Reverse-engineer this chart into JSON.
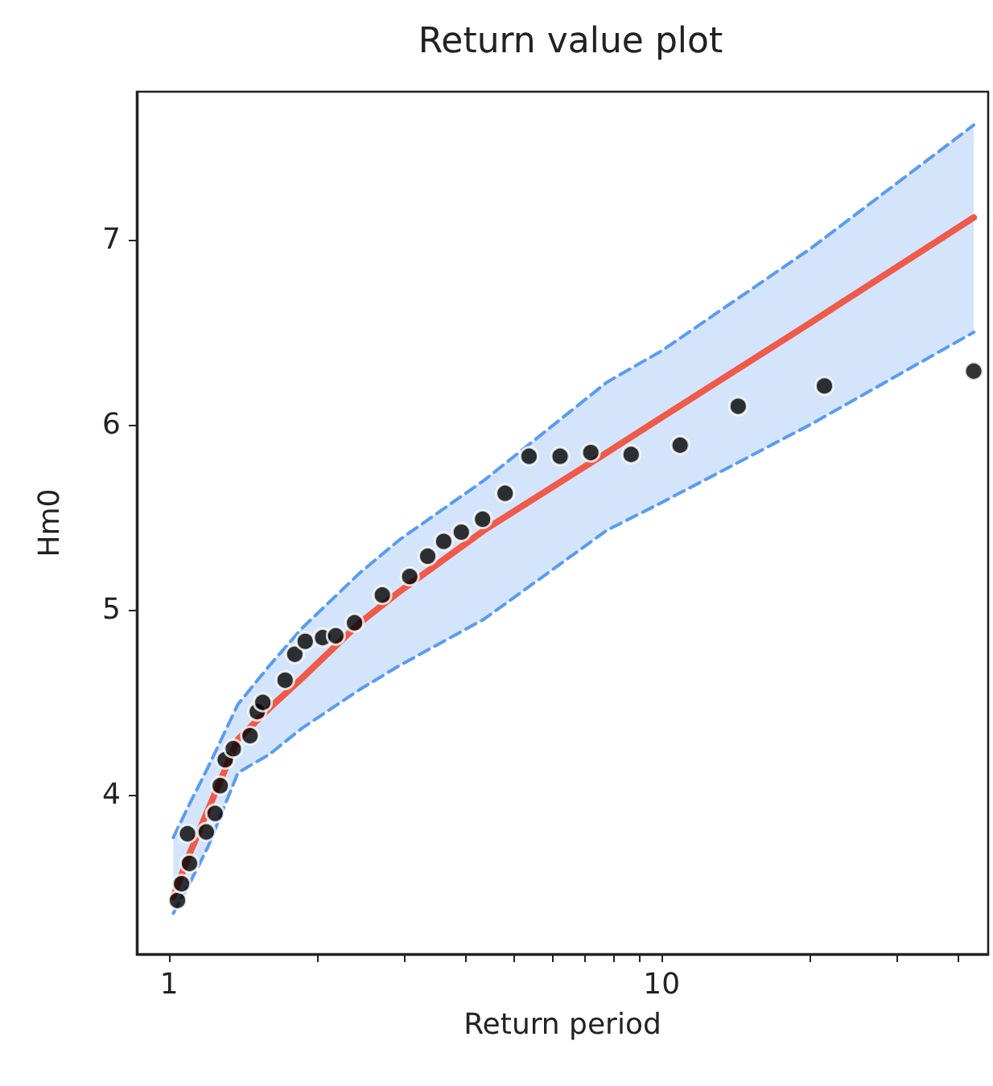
{
  "chart_data": {
    "type": "scatter",
    "title": "Return value plot",
    "xlabel": "Return period",
    "ylabel": "Hm0",
    "log": "x",
    "grid": false,
    "marker": "circle",
    "xlim": [
      0.86,
      46
    ],
    "ylim": [
      3.14,
      7.8
    ],
    "xticks": [
      1,
      {
        "value": 2,
        "label": null
      },
      {
        "value": 3,
        "label": null
      },
      {
        "value": 4,
        "label": null
      },
      {
        "value": 5,
        "label": null
      },
      {
        "value": 6,
        "label": null
      },
      {
        "value": 7,
        "label": null
      },
      {
        "value": 8,
        "label": null
      },
      {
        "value": 9,
        "label": null
      },
      10,
      {
        "value": 20,
        "label": null
      },
      {
        "value": 30,
        "label": null
      },
      {
        "value": 40,
        "label": null
      }
    ],
    "yticks": [
      4,
      5,
      6,
      7
    ],
    "series": [
      {
        "type": "line",
        "color": "#f05a4a",
        "line_style": "solid",
        "marker": "none",
        "x": [
          1.02,
          1.1,
          1.2,
          1.38,
          1.6,
          1.86,
          2.44,
          2.94,
          4.36,
          7.74,
          10,
          20,
          43
        ],
        "values": [
          3.45,
          3.68,
          3.92,
          4.3,
          4.47,
          4.63,
          4.93,
          5.1,
          5.43,
          5.85,
          6.04,
          6.55,
          7.12
        ],
        "lower": [
          3.36,
          3.52,
          3.72,
          4.12,
          4.22,
          4.36,
          4.57,
          4.7,
          4.95,
          5.43,
          5.58,
          6.0,
          6.5
        ],
        "upper": [
          3.77,
          3.95,
          4.15,
          4.49,
          4.7,
          4.9,
          5.2,
          5.38,
          5.7,
          6.23,
          6.4,
          6.95,
          7.62
        ]
      },
      {
        "type": "line",
        "color": "#5a9cf0",
        "line_style": "dashed",
        "marker": "none",
        "x": [
          1.02,
          1.1,
          1.2,
          1.38,
          1.6,
          1.86,
          2.44,
          2.94,
          4.36,
          7.74,
          10,
          20,
          43
        ],
        "values": [
          3.77,
          3.95,
          4.15,
          4.49,
          4.7,
          4.9,
          5.2,
          5.38,
          5.7,
          6.23,
          6.4,
          6.95,
          7.62
        ]
      },
      {
        "type": "line",
        "color": "#5a9cf0",
        "line_style": "dashed",
        "marker": "none",
        "x": [
          1.02,
          1.1,
          1.2,
          1.38,
          1.6,
          1.86,
          2.44,
          2.94,
          4.36,
          7.74,
          10,
          20,
          43
        ],
        "values": [
          3.36,
          3.52,
          3.72,
          4.12,
          4.22,
          4.36,
          4.57,
          4.7,
          4.95,
          5.43,
          5.58,
          6.0,
          6.5
        ]
      },
      {
        "color": "#000000",
        "x": [
          1.04,
          1.06,
          1.09,
          1.1,
          1.19,
          1.24,
          1.27,
          1.3,
          1.35,
          1.46,
          1.51,
          1.55,
          1.72,
          1.8,
          1.89,
          2.05,
          2.18,
          2.38,
          2.71,
          3.08,
          3.35,
          3.61,
          3.92,
          4.33,
          4.81,
          5.38,
          6.22,
          7.18,
          8.67,
          10.9,
          14.3,
          21.4,
          43.0
        ],
        "values": [
          3.43,
          3.52,
          3.79,
          3.63,
          3.8,
          3.9,
          4.05,
          4.19,
          4.25,
          4.32,
          4.45,
          4.5,
          4.62,
          4.76,
          4.83,
          4.85,
          4.86,
          4.93,
          5.08,
          5.18,
          5.29,
          5.37,
          5.42,
          5.49,
          5.63,
          5.83,
          5.83,
          5.85,
          5.84,
          5.89,
          6.1,
          6.21,
          6.29
        ]
      }
    ]
  }
}
